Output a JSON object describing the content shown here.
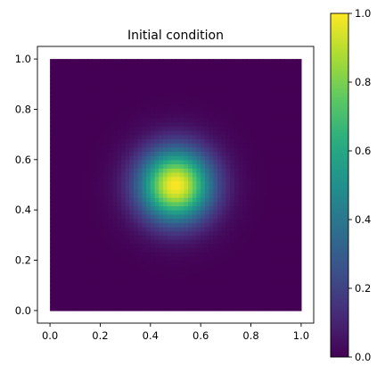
{
  "chart_data": {
    "type": "heatmap",
    "title": "Initial condition",
    "field": {
      "kind": "gaussian",
      "center": [
        0.5,
        0.5
      ],
      "sigma": 0.1,
      "amplitude": 1.0
    },
    "xlim": [
      -0.05,
      1.05
    ],
    "ylim": [
      -0.05,
      1.05
    ],
    "domain": {
      "x": [
        0,
        1
      ],
      "y": [
        0,
        1
      ]
    },
    "xticks": [
      0.0,
      0.2,
      0.4,
      0.6,
      0.8,
      1.0
    ],
    "yticks": [
      0.0,
      0.2,
      0.4,
      0.6,
      0.8,
      1.0
    ],
    "xtick_labels": [
      "0.0",
      "0.2",
      "0.4",
      "0.6",
      "0.8",
      "1.0"
    ],
    "ytick_labels": [
      "0.0",
      "0.2",
      "0.4",
      "0.6",
      "0.8",
      "1.0"
    ],
    "colorbar": {
      "min": 0.0,
      "max": 1.0,
      "ticks": [
        0.0,
        0.2,
        0.4,
        0.6,
        0.8,
        1.0
      ],
      "tick_labels": [
        "0.0",
        "0.2",
        "0.4",
        "0.6",
        "0.8",
        "1.0"
      ],
      "colormap": "viridis"
    },
    "grid": false
  },
  "colors": {
    "background": "#ffffff",
    "axes": "#000000"
  }
}
